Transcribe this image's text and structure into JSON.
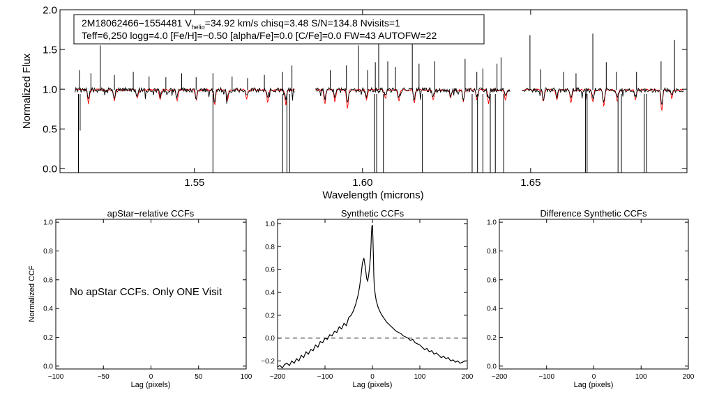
{
  "chart_data": [
    {
      "id": "spectrum",
      "type": "line",
      "title": "",
      "xlabel": "Wavelength (microns)",
      "ylabel": "Normalized Flux",
      "xlim": [
        1.51,
        1.6965
      ],
      "ylim": [
        -0.05,
        2.0
      ],
      "xticks": [
        1.55,
        1.6,
        1.65
      ],
      "xtick_labels": [
        "1.55",
        "1.60",
        "1.65"
      ],
      "yticks": [
        0.0,
        0.5,
        1.0,
        1.5,
        2.0
      ],
      "ytick_labels": [
        "0.0",
        "0.5",
        "1.0",
        "1.5",
        "2.0"
      ],
      "chips": [
        [
          1.5145,
          1.58
        ],
        [
          1.586,
          1.644
        ],
        [
          1.6475,
          1.6955
        ]
      ],
      "continuum": 0.99,
      "series": [
        {
          "name": "observed",
          "color": "#000000",
          "emission_spikes": [
            [
              1.5158,
              1.24
            ],
            [
              1.5192,
              1.2
            ],
            [
              1.522,
              1.55
            ],
            [
              1.5262,
              1.18
            ],
            [
              1.5318,
              1.22
            ],
            [
              1.5365,
              1.16
            ],
            [
              1.5415,
              1.15
            ],
            [
              1.5462,
              1.2
            ],
            [
              1.5505,
              1.15
            ],
            [
              1.5555,
              1.2
            ],
            [
              1.5612,
              1.16
            ],
            [
              1.5658,
              1.14
            ],
            [
              1.5708,
              1.18
            ],
            [
              1.5762,
              1.22
            ],
            [
              1.579,
              1.3
            ],
            [
              1.5904,
              1.24
            ],
            [
              1.5952,
              1.3
            ],
            [
              1.5988,
              1.55
            ],
            [
              1.6015,
              1.24
            ],
            [
              1.6038,
              1.34
            ],
            [
              1.6048,
              1.65
            ],
            [
              1.6075,
              1.35
            ],
            [
              1.6098,
              1.28
            ],
            [
              1.6148,
              1.6
            ],
            [
              1.6168,
              1.32
            ],
            [
              1.6215,
              1.35
            ],
            [
              1.6305,
              1.38
            ],
            [
              1.634,
              1.22
            ],
            [
              1.6358,
              1.26
            ],
            [
              1.64,
              1.32
            ],
            [
              1.6412,
              1.4
            ],
            [
              1.6498,
              1.68
            ],
            [
              1.653,
              1.25
            ],
            [
              1.6598,
              1.22
            ],
            [
              1.6635,
              1.2
            ],
            [
              1.6685,
              1.7
            ],
            [
              1.6725,
              1.34
            ],
            [
              1.6755,
              1.22
            ],
            [
              1.6815,
              1.22
            ],
            [
              1.6888,
              1.35
            ],
            [
              1.6928,
              1.62
            ]
          ],
          "absorption_drops": [
            [
              1.5155,
              -0.05
            ],
            [
              1.516,
              0.48
            ],
            [
              1.5555,
              -0.05
            ],
            [
              1.5762,
              -0.05
            ],
            [
              1.5775,
              -0.05
            ],
            [
              1.5783,
              -0.05
            ],
            [
              1.6035,
              -0.05
            ],
            [
              1.6042,
              -0.05
            ],
            [
              1.6062,
              -0.05
            ],
            [
              1.6178,
              -0.05
            ],
            [
              1.6326,
              -0.05
            ],
            [
              1.6342,
              -0.05
            ],
            [
              1.6358,
              -0.05
            ],
            [
              1.638,
              -0.05
            ],
            [
              1.6395,
              -0.05
            ],
            [
              1.642,
              -0.05
            ],
            [
              1.6663,
              -0.05
            ],
            [
              1.6668,
              -0.05
            ],
            [
              1.676,
              -0.05
            ],
            [
              1.677,
              -0.05
            ],
            [
              1.6838,
              -0.05
            ],
            [
              1.6845,
              -0.05
            ]
          ]
        },
        {
          "name": "model",
          "color": "#ff0000",
          "absorption_lines": [
            [
              1.5185,
              0.82
            ],
            [
              1.5262,
              0.86
            ],
            [
              1.533,
              0.88
            ],
            [
              1.5398,
              0.86
            ],
            [
              1.5448,
              0.84
            ],
            [
              1.5505,
              0.86
            ],
            [
              1.556,
              0.8
            ],
            [
              1.5598,
              0.86
            ],
            [
              1.5655,
              0.88
            ],
            [
              1.5718,
              0.84
            ],
            [
              1.5772,
              0.8
            ],
            [
              1.5888,
              0.82
            ],
            [
              1.5918,
              0.84
            ],
            [
              1.5955,
              0.76
            ],
            [
              1.6012,
              0.86
            ],
            [
              1.6068,
              0.88
            ],
            [
              1.6108,
              0.84
            ],
            [
              1.6154,
              0.82
            ],
            [
              1.621,
              0.86
            ],
            [
              1.6262,
              0.88
            ],
            [
              1.63,
              0.84
            ],
            [
              1.634,
              0.86
            ],
            [
              1.6375,
              0.82
            ],
            [
              1.6425,
              0.86
            ],
            [
              1.6538,
              0.84
            ],
            [
              1.6578,
              0.86
            ],
            [
              1.662,
              0.82
            ],
            [
              1.6685,
              0.84
            ],
            [
              1.6718,
              0.78
            ],
            [
              1.6758,
              0.84
            ],
            [
              1.6812,
              0.86
            ],
            [
              1.689,
              0.72
            ],
            [
              1.692,
              0.88
            ]
          ]
        }
      ],
      "legend": {
        "line1": [
          "2M18062466−1554481  ",
          "V",
          "helio",
          "=34.92 km/s  chisq=3.48  S/N=134.8  Nvisits=1"
        ],
        "line2": "Teff=6,250 logg=4.0 [Fe/H]=−0.50 [alpha/Fe]=0.0 [C/Fe]=0.0 FW=43 AUTOFW=22"
      }
    },
    {
      "id": "apstar-ccf",
      "type": "line",
      "title": "apStar−relative CCFs",
      "xlabel": "Lag (pixels)",
      "ylabel": "Normalized CCF",
      "xlim": [
        -100,
        100
      ],
      "ylim": [
        -0.02,
        1.02
      ],
      "xticks": [
        -100,
        -50,
        0,
        50,
        100
      ],
      "xtick_labels": [
        "−100",
        "−50",
        "0",
        "50",
        "100"
      ],
      "yticks": [
        0.0,
        0.2,
        0.4,
        0.6,
        0.8,
        1.0
      ],
      "ytick_labels": [
        "0.0",
        "0.2",
        "0.4",
        "0.6",
        "0.8",
        "1.0"
      ],
      "annotation": "No apStar CCFs.  Only ONE Visit",
      "series": []
    },
    {
      "id": "synthetic-ccf",
      "type": "line",
      "title": "Synthetic CCFs",
      "xlabel": "Lag (pixels)",
      "ylabel": "",
      "xlim": [
        -200,
        200
      ],
      "ylim": [
        -0.27,
        1.04
      ],
      "xticks": [
        -200,
        -100,
        0,
        100,
        200
      ],
      "xtick_labels": [
        "−200",
        "−100",
        "0",
        "100",
        "200"
      ],
      "yticks": [
        -0.2,
        0.0,
        0.2,
        0.4,
        0.6,
        0.8,
        1.0
      ],
      "ytick_labels": [
        "−0.2",
        "0.0",
        "0.2",
        "0.4",
        "0.6",
        "0.8",
        "1.0"
      ],
      "reference_line": 0.0,
      "series": [
        {
          "name": "ccf",
          "color": "#000000",
          "x": [
            -200,
            -195,
            -190,
            -185,
            -180,
            -175,
            -170,
            -165,
            -160,
            -155,
            -150,
            -145,
            -140,
            -135,
            -130,
            -125,
            -120,
            -115,
            -110,
            -105,
            -100,
            -95,
            -90,
            -85,
            -80,
            -75,
            -70,
            -65,
            -60,
            -55,
            -50,
            -45,
            -40,
            -35,
            -30,
            -27,
            -24,
            -21,
            -18,
            -15,
            -12,
            -10,
            -8,
            -6,
            -4,
            -3,
            -2,
            -1,
            0,
            1,
            2,
            3,
            4,
            6,
            8,
            10,
            12,
            15,
            20,
            25,
            30,
            35,
            40,
            45,
            50,
            55,
            60,
            65,
            70,
            75,
            80,
            85,
            90,
            95,
            100,
            105,
            110,
            115,
            120,
            125,
            130,
            135,
            140,
            145,
            150,
            155,
            160,
            165,
            170,
            175,
            180,
            185,
            190,
            195,
            200
          ],
          "y": [
            -0.25,
            -0.24,
            -0.26,
            -0.23,
            -0.22,
            -0.24,
            -0.2,
            -0.22,
            -0.18,
            -0.2,
            -0.15,
            -0.17,
            -0.12,
            -0.14,
            -0.1,
            -0.11,
            -0.06,
            -0.08,
            -0.03,
            -0.04,
            0.0,
            -0.01,
            0.03,
            0.02,
            0.06,
            0.05,
            0.1,
            0.08,
            0.13,
            0.11,
            0.18,
            0.2,
            0.24,
            0.3,
            0.38,
            0.45,
            0.55,
            0.66,
            0.7,
            0.62,
            0.52,
            0.5,
            0.55,
            0.62,
            0.72,
            0.82,
            0.92,
            0.98,
            0.99,
            0.88,
            0.72,
            0.55,
            0.45,
            0.38,
            0.33,
            0.3,
            0.27,
            0.24,
            0.2,
            0.17,
            0.14,
            0.12,
            0.1,
            0.08,
            0.06,
            0.05,
            0.04,
            0.02,
            0.01,
            0.0,
            -0.02,
            -0.01,
            -0.04,
            -0.05,
            -0.06,
            -0.08,
            -0.1,
            -0.09,
            -0.12,
            -0.11,
            -0.14,
            -0.13,
            -0.15,
            -0.17,
            -0.16,
            -0.18,
            -0.17,
            -0.2,
            -0.19,
            -0.21,
            -0.2,
            -0.22,
            -0.21,
            -0.2,
            -0.2
          ]
        }
      ]
    },
    {
      "id": "difference-ccf",
      "type": "line",
      "title": "Difference Synthetic CCFs",
      "xlabel": "Lag (pixels)",
      "ylabel": "",
      "xlim": [
        -200,
        200
      ],
      "ylim": [
        -0.02,
        1.02
      ],
      "xticks": [
        -200,
        -100,
        0,
        100,
        200
      ],
      "xtick_labels": [
        "−200",
        "−100",
        "0",
        "100",
        "200"
      ],
      "yticks": [
        0.0,
        0.2,
        0.4,
        0.6,
        0.8,
        1.0
      ],
      "ytick_labels": [
        "0.0",
        "0.2",
        "0.4",
        "0.6",
        "0.8",
        "1.0"
      ],
      "series": []
    }
  ]
}
